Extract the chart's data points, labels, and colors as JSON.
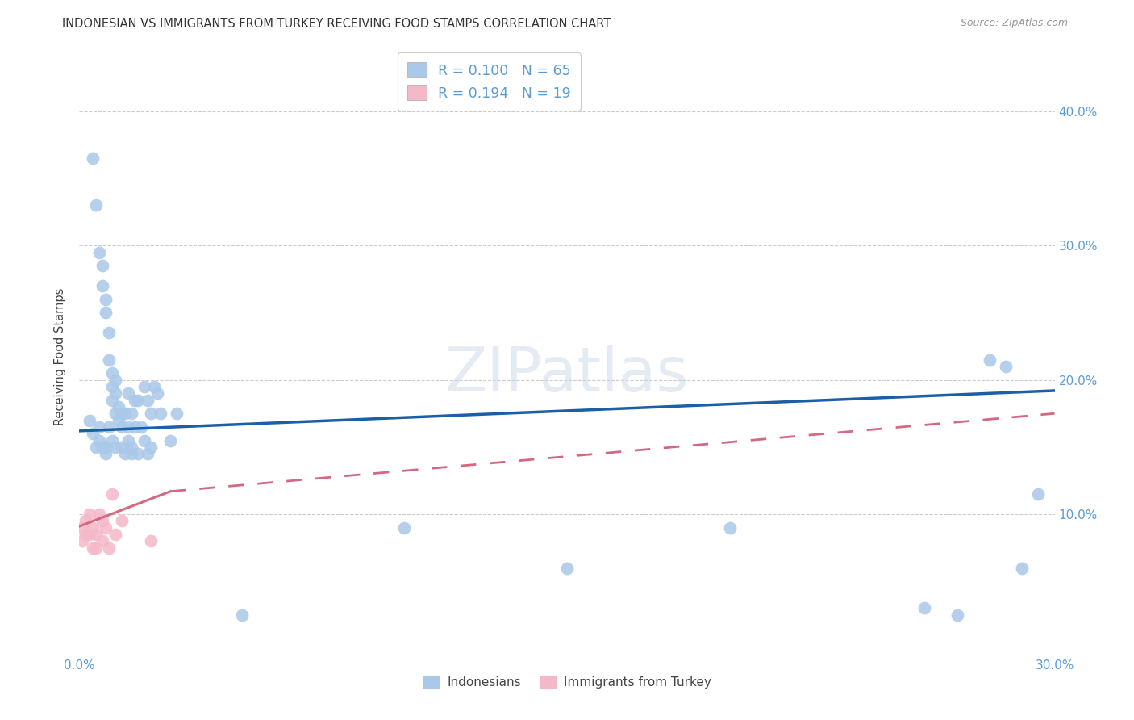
{
  "title": "INDONESIAN VS IMMIGRANTS FROM TURKEY RECEIVING FOOD STAMPS CORRELATION CHART",
  "source": "Source: ZipAtlas.com",
  "ylabel": "Receiving Food Stamps",
  "xlim": [
    0.0,
    0.3
  ],
  "ylim": [
    -0.005,
    0.44
  ],
  "legend_R1": "0.100",
  "legend_N1": "65",
  "legend_R2": "0.194",
  "legend_N2": "19",
  "blue_color": "#aac8e8",
  "blue_line_color": "#1a5fa8",
  "pink_color": "#f5b8c8",
  "pink_line_color": "#d46880",
  "blue_trend": [
    0.0,
    0.162,
    0.3,
    0.192
  ],
  "pink_solid": [
    0.0,
    0.091,
    0.028,
    0.117
  ],
  "pink_dashed": [
    0.028,
    0.117,
    0.3,
    0.175
  ],
  "ind_x": [
    0.004,
    0.005,
    0.006,
    0.007,
    0.007,
    0.008,
    0.008,
    0.009,
    0.009,
    0.01,
    0.01,
    0.01,
    0.011,
    0.011,
    0.011,
    0.012,
    0.012,
    0.013,
    0.013,
    0.014,
    0.015,
    0.015,
    0.015,
    0.016,
    0.017,
    0.017,
    0.018,
    0.019,
    0.02,
    0.021,
    0.022,
    0.023,
    0.024,
    0.025,
    0.028,
    0.03,
    0.003,
    0.004,
    0.005,
    0.006,
    0.006,
    0.007,
    0.008,
    0.008,
    0.009,
    0.01,
    0.011,
    0.013,
    0.014,
    0.016,
    0.016,
    0.018,
    0.02,
    0.021,
    0.022,
    0.05,
    0.1,
    0.15,
    0.2,
    0.26,
    0.27,
    0.28,
    0.285,
    0.29,
    0.295
  ],
  "ind_y": [
    0.365,
    0.33,
    0.295,
    0.285,
    0.27,
    0.26,
    0.25,
    0.235,
    0.215,
    0.205,
    0.195,
    0.185,
    0.2,
    0.19,
    0.175,
    0.18,
    0.17,
    0.175,
    0.165,
    0.175,
    0.19,
    0.165,
    0.155,
    0.175,
    0.185,
    0.165,
    0.185,
    0.165,
    0.195,
    0.185,
    0.175,
    0.195,
    0.19,
    0.175,
    0.155,
    0.175,
    0.17,
    0.16,
    0.15,
    0.165,
    0.155,
    0.15,
    0.15,
    0.145,
    0.165,
    0.155,
    0.15,
    0.15,
    0.145,
    0.15,
    0.145,
    0.145,
    0.155,
    0.145,
    0.15,
    0.025,
    0.09,
    0.06,
    0.09,
    0.03,
    0.025,
    0.215,
    0.21,
    0.06,
    0.115
  ],
  "tur_x": [
    0.001,
    0.001,
    0.002,
    0.002,
    0.003,
    0.003,
    0.004,
    0.004,
    0.005,
    0.005,
    0.006,
    0.007,
    0.007,
    0.008,
    0.009,
    0.01,
    0.011,
    0.013,
    0.022
  ],
  "tur_y": [
    0.09,
    0.08,
    0.085,
    0.095,
    0.085,
    0.1,
    0.075,
    0.09,
    0.085,
    0.075,
    0.1,
    0.095,
    0.08,
    0.09,
    0.075,
    0.115,
    0.085,
    0.095,
    0.08
  ]
}
